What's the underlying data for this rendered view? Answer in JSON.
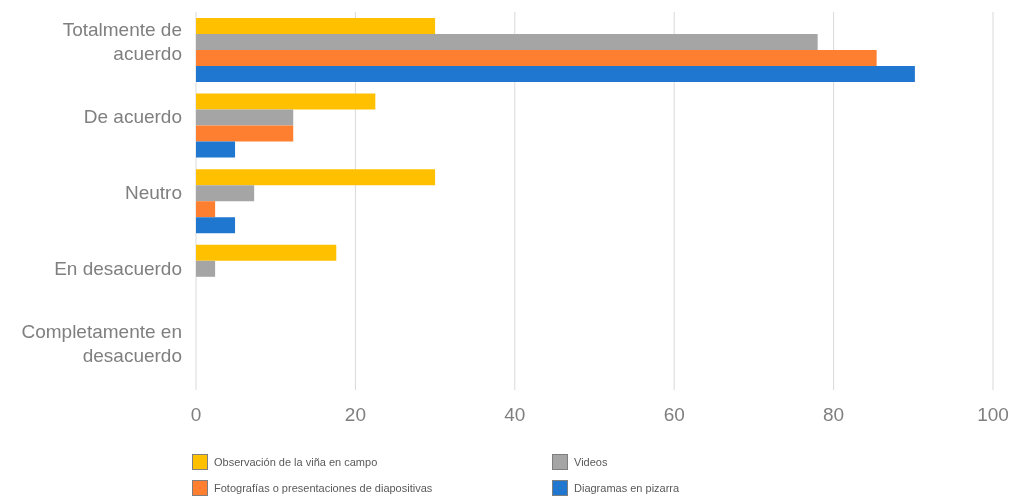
{
  "chart_data": {
    "type": "bar",
    "orientation": "horizontal",
    "categories": [
      "Totalmente de acuerdo",
      "De acuerdo",
      "Neutro",
      "En desacuerdo",
      "Completamente en desacuerdo"
    ],
    "series": [
      {
        "name": "Observación de la viña en campo",
        "color": "#ffc000",
        "values": [
          30,
          22.5,
          30,
          17.6,
          null
        ]
      },
      {
        "name": "Videos",
        "color": "#a5a5a5",
        "values": [
          78,
          12.2,
          7.3,
          2.4,
          null
        ]
      },
      {
        "name": "Fotografías o presentaciones de diapositivas",
        "color": "#fd7f2f",
        "values": [
          85.4,
          12.2,
          2.4,
          null,
          null
        ]
      },
      {
        "name": "Diagramas en pizarra",
        "color": "#1f77d0",
        "values": [
          90.2,
          4.9,
          4.9,
          null,
          null
        ]
      }
    ],
    "xlim": [
      0,
      100
    ],
    "xticks": [
      0,
      20,
      40,
      60,
      80,
      100
    ],
    "grid": "x",
    "legend": "bottom"
  }
}
